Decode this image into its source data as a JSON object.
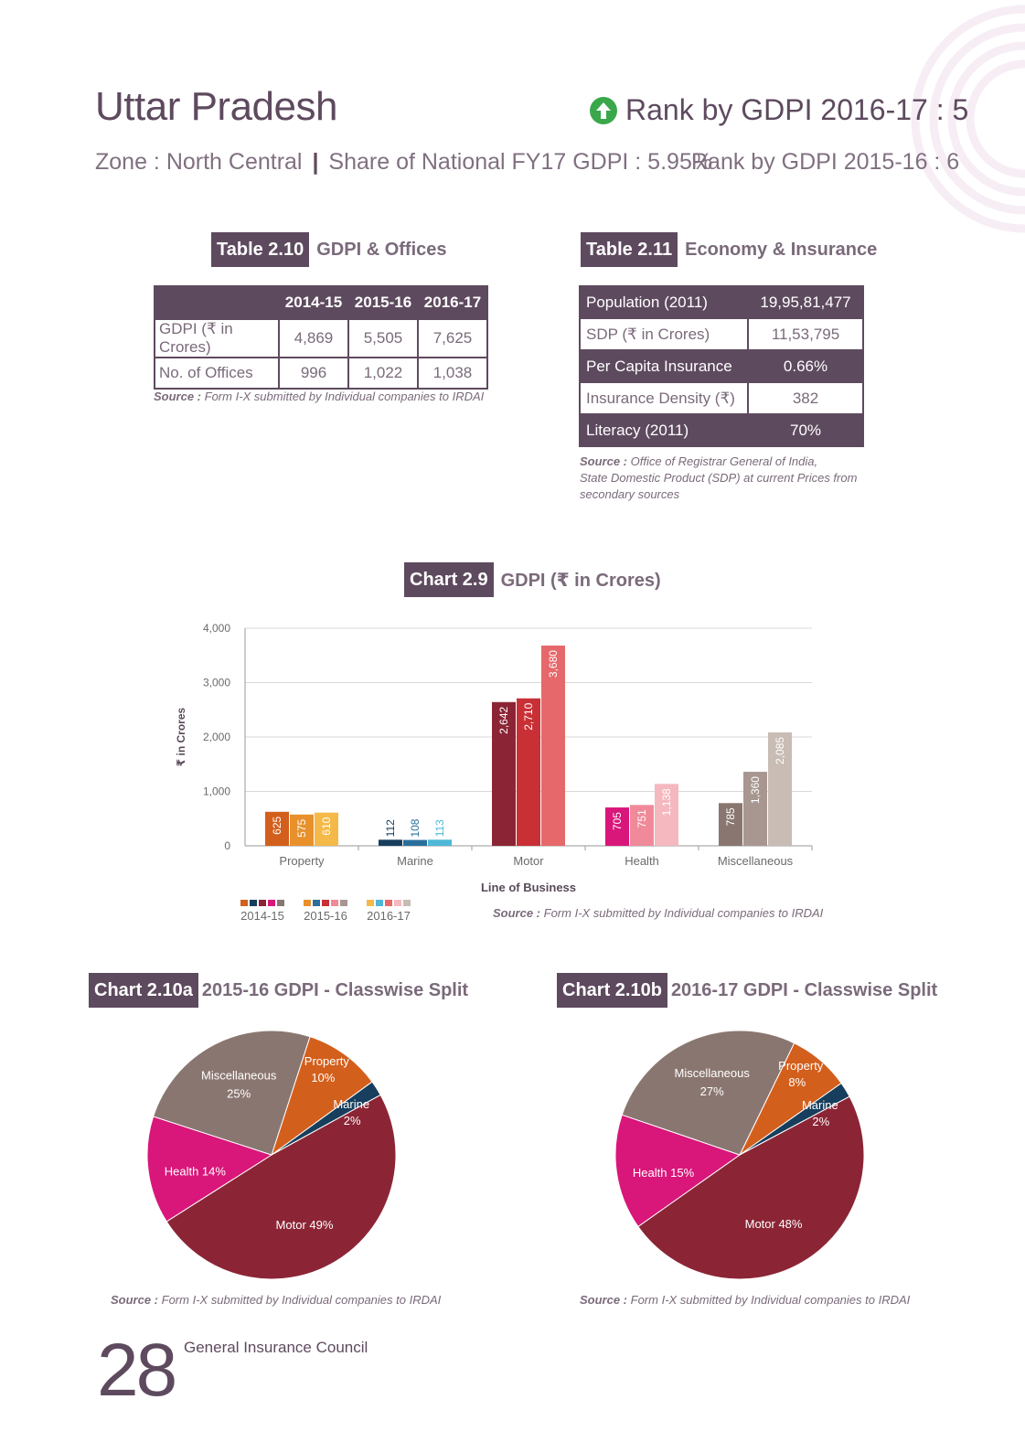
{
  "header": {
    "state": "Uttar Pradesh",
    "rank_current": "Rank by GDPI 2016-17 : 5",
    "zone": "Zone : North Central",
    "share": "Share of National FY17 GDPI : 5.95%",
    "rank_previous": "Rank by GDPI 2015-16 : 6"
  },
  "colors": {
    "brand": "#5e4a5e",
    "rank_up": "#3aa84a"
  },
  "table_2_10": {
    "caption_label": "Table 2.10",
    "caption_title": "GDPI & Offices",
    "columns": [
      "2014-15",
      "2015-16",
      "2016-17"
    ],
    "rows": [
      {
        "label": "GDPI (₹ in Crores)",
        "values": [
          "4,869",
          "5,505",
          "7,625"
        ]
      },
      {
        "label": "No. of Offices",
        "values": [
          "996",
          "1,022",
          "1,038"
        ]
      }
    ],
    "source_label": "Source :",
    "source_text": "Form I-X submitted by Individual companies to IRDAI"
  },
  "table_2_11": {
    "caption_label": "Table 2.11",
    "caption_title": "Economy & Insurance",
    "rows": [
      {
        "label": "Population (2011)",
        "value": "19,95,81,477"
      },
      {
        "label": "SDP (₹ in Crores)",
        "value": "11,53,795"
      },
      {
        "label": "Per Capita Insurance",
        "value": "0.66%"
      },
      {
        "label": "Insurance Density (₹)",
        "value": "382"
      },
      {
        "label": "Literacy (2011)",
        "value": "70%"
      }
    ],
    "source_label": "Source :",
    "source_line1": "Office of Registrar General of India,",
    "source_line2": "State Domestic Product (SDP) at current Prices from",
    "source_line3": "secondary sources"
  },
  "chart_2_9_caption": {
    "label": "Chart 2.9",
    "title": "GDPI (₹ in Crores)"
  },
  "chart_2_9_source": {
    "label": "Source :",
    "text": "Form I-X submitted by Individual companies to IRDAI"
  },
  "chart_2_10a_caption": {
    "label": "Chart 2.10a",
    "title": "2015-16 GDPI - Classwise Split"
  },
  "chart_2_10b_caption": {
    "label": "Chart 2.10b",
    "title": "2016-17 GDPI - Classwise Split"
  },
  "pie_source": {
    "label": "Source :",
    "text": "Form I-X submitted by Individual companies to IRDAI"
  },
  "chart_data": [
    {
      "type": "bar",
      "ylabel": "₹ in Crores",
      "xlabel": "Line of Business",
      "ylim": [
        0,
        4000
      ],
      "yticks": [
        "0",
        "1,000",
        "2,000",
        "3,000",
        "4,000"
      ],
      "grid": true,
      "legend_position": "bottom-left",
      "categories": [
        "Property",
        "Marine",
        "Motor",
        "Health",
        "Miscellaneous"
      ],
      "series": [
        {
          "name": "2014-15",
          "values": [
            625,
            112,
            2642,
            705,
            785
          ],
          "labels": [
            "625",
            "112",
            "2,642",
            "705",
            "785"
          ]
        },
        {
          "name": "2015-16",
          "values": [
            575,
            108,
            2710,
            751,
            1360
          ],
          "labels": [
            "575",
            "108",
            "2,710",
            "751",
            "1,360"
          ]
        },
        {
          "name": "2016-17",
          "values": [
            610,
            113,
            3680,
            1138,
            2085
          ],
          "labels": [
            "610",
            "113",
            "3,680",
            "1,138",
            "2,085"
          ]
        }
      ],
      "category_colors": [
        [
          "#d35f1c",
          "#e8912c",
          "#f5b94a"
        ],
        [
          "#173e5c",
          "#2a6f9c",
          "#4fb8d6"
        ],
        [
          "#8b2535",
          "#c93035",
          "#e6686a"
        ],
        [
          "#d9167a",
          "#f08a9a",
          "#f5b8bf"
        ],
        [
          "#8a7670",
          "#a89690",
          "#c8bcb4"
        ]
      ]
    },
    {
      "type": "pie",
      "slices": [
        {
          "label": "Property",
          "value": 10,
          "text": "10%",
          "color": "#d35f1c"
        },
        {
          "label": "Marine",
          "value": 2,
          "text": "2%",
          "color": "#173e5c"
        },
        {
          "label": "Motor",
          "value": 49,
          "text": "Motor 49%",
          "color": "#8b2535"
        },
        {
          "label": "Health",
          "value": 14,
          "text": "Health 14%",
          "color": "#d9167a"
        },
        {
          "label": "Miscellaneous",
          "value": 25,
          "text": "25%",
          "color": "#8a7670"
        }
      ]
    },
    {
      "type": "pie",
      "slices": [
        {
          "label": "Property",
          "value": 8,
          "text": "8%",
          "color": "#d35f1c"
        },
        {
          "label": "Marine",
          "value": 2,
          "text": "2%",
          "color": "#173e5c"
        },
        {
          "label": "Motor",
          "value": 48,
          "text": "Motor 48%",
          "color": "#8b2535"
        },
        {
          "label": "Health",
          "value": 15,
          "text": "Health 15%",
          "color": "#d9167a"
        },
        {
          "label": "Miscellaneous",
          "value": 27,
          "text": "27%",
          "color": "#8a7670"
        }
      ]
    }
  ],
  "footer": {
    "page_number": "28",
    "publisher": "General Insurance Council"
  }
}
